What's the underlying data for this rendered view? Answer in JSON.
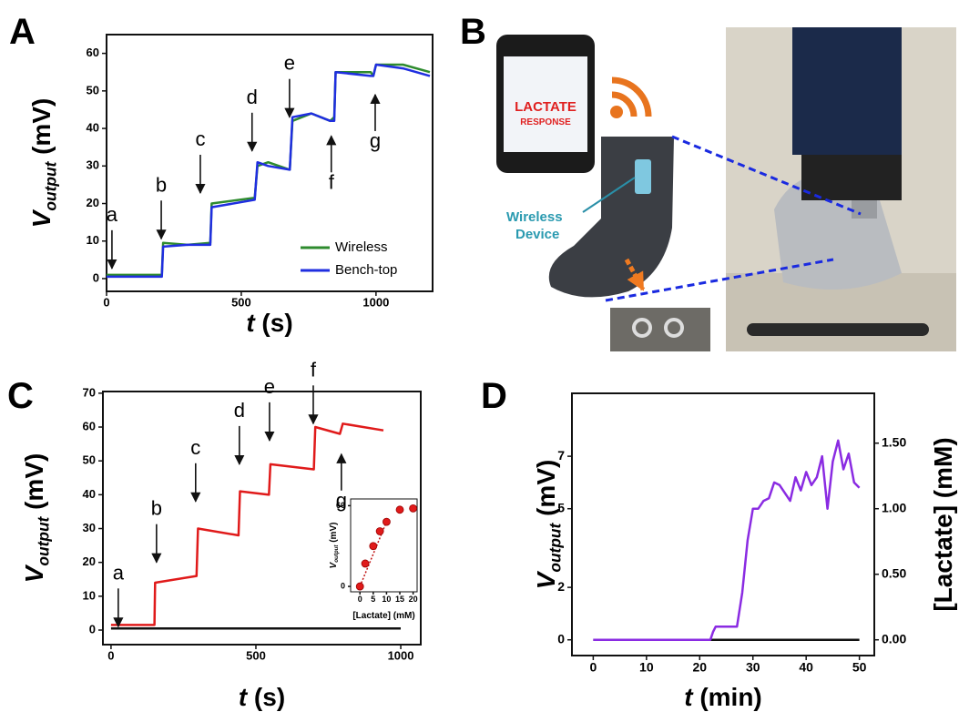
{
  "panel_b": {
    "label": "B",
    "phone_text": [
      "LACTATE",
      "RESPONSE"
    ],
    "device_label": [
      "Wireless",
      "Device"
    ]
  },
  "chart_data": [
    {
      "type": "line",
      "panel_label": "A",
      "x_label": {
        "main": "t",
        "unit": "(s)"
      },
      "y_label": {
        "main": "V",
        "sub": "output",
        "unit": "(mV)"
      },
      "xlim": [
        0,
        1210
      ],
      "xticks": [
        0,
        500,
        1000
      ],
      "ylim": [
        -3.4,
        65
      ],
      "yticks": [
        0,
        10,
        20,
        30,
        40,
        50,
        60
      ],
      "legend": "lower right",
      "series": [
        {
          "name": "Wireless",
          "color": "#2e8b2e",
          "x": [
            0,
            205,
            210,
            300,
            385,
            390,
            550,
            560,
            600,
            680,
            690,
            760,
            830,
            845,
            850,
            980,
            990,
            1000,
            1100,
            1200
          ],
          "values": [
            1,
            1,
            9.5,
            9,
            9.5,
            20,
            21.5,
            30,
            31,
            29,
            42,
            44,
            42,
            43,
            55,
            55,
            54,
            57,
            57,
            55
          ]
        },
        {
          "name": "Bench-top",
          "color": "#1f2ee0",
          "x": [
            0,
            205,
            210,
            300,
            385,
            390,
            550,
            560,
            600,
            680,
            690,
            760,
            830,
            845,
            850,
            980,
            990,
            1000,
            1100,
            1200
          ],
          "values": [
            0.5,
            0.5,
            8.5,
            9,
            9,
            19,
            21,
            31,
            30,
            29,
            43,
            44,
            42,
            42,
            55,
            54,
            54,
            57,
            56,
            54
          ]
        }
      ],
      "annotations": [
        {
          "text": "a",
          "x": 20,
          "y": 2.7,
          "direction": "down"
        },
        {
          "text": "b",
          "x": 203,
          "y": 10.6,
          "direction": "down"
        },
        {
          "text": "c",
          "x": 348,
          "y": 22.8,
          "direction": "down"
        },
        {
          "text": "d",
          "x": 540,
          "y": 34,
          "direction": "down"
        },
        {
          "text": "e",
          "x": 679,
          "y": 43,
          "direction": "down"
        },
        {
          "text": "f",
          "x": 834,
          "y": 38,
          "direction": "up"
        },
        {
          "text": "g",
          "x": 997,
          "y": 49,
          "direction": "up"
        }
      ]
    },
    {
      "type": "line",
      "panel_label": "C",
      "x_label": {
        "main": "t",
        "unit": "(s)"
      },
      "y_label": {
        "main": "V",
        "sub": "output",
        "unit": "(mV)"
      },
      "xlim": [
        -28,
        1069
      ],
      "xticks": [
        0,
        500,
        1000
      ],
      "ylim": [
        -4.3,
        70.5
      ],
      "yticks": [
        0,
        10,
        20,
        30,
        40,
        50,
        60,
        70
      ],
      "series": [
        {
          "color": "#e01a1a",
          "x": [
            0,
            150,
            152,
            295,
            300,
            440,
            445,
            545,
            550,
            700,
            705,
            790,
            800,
            940
          ],
          "values": [
            1.5,
            1.5,
            14,
            16,
            30,
            28,
            41,
            40,
            49,
            47.5,
            60,
            58,
            61,
            59
          ]
        },
        {
          "color": "#111111",
          "x": [
            0,
            1000
          ],
          "values": [
            0.5,
            0.5
          ]
        }
      ],
      "annotations": [
        {
          "text": "a",
          "x": 25,
          "y": 1,
          "direction": "down"
        },
        {
          "text": "b",
          "x": 157,
          "y": 20,
          "direction": "down"
        },
        {
          "text": "c",
          "x": 292,
          "y": 38,
          "direction": "down"
        },
        {
          "text": "d",
          "x": 443,
          "y": 49,
          "direction": "down"
        },
        {
          "text": "e",
          "x": 547,
          "y": 56,
          "direction": "down"
        },
        {
          "text": "f",
          "x": 698,
          "y": 61,
          "direction": "down"
        },
        {
          "text": "g",
          "x": 795,
          "y": 52,
          "direction": "up"
        }
      ]
    },
    {
      "type": "scatter",
      "x_label": {
        "main": "[Lactate] (mM)"
      },
      "y_label": {
        "main": "V",
        "sub": "output",
        "unit": "(mV)"
      },
      "xlim": [
        -3.5,
        21.5
      ],
      "xticks": [
        0,
        5,
        10,
        15,
        20
      ],
      "ylim": [
        -4,
        65
      ],
      "yticks": [
        0,
        60
      ],
      "series": [
        {
          "color": "#e01a1a",
          "x": [
            0,
            2,
            5,
            7.5,
            10,
            15,
            20
          ],
          "values": [
            0,
            17,
            30,
            41,
            48,
            57,
            58
          ]
        }
      ],
      "fit": {
        "color": "#c01010",
        "x": [
          0,
          10
        ],
        "values": [
          0,
          48
        ]
      }
    },
    {
      "type": "line",
      "panel_label": "D",
      "x_label": {
        "main": "t",
        "unit": "(min)"
      },
      "y_label": {
        "main": "V",
        "sub": "output",
        "unit": "(mV)"
      },
      "y2_label": {
        "main": "[Lactate] (mM)"
      },
      "xlim": [
        -4,
        52.8
      ],
      "xticks": [
        0,
        10,
        20,
        30,
        40,
        50
      ],
      "ylim": [
        -0.6,
        9.4
      ],
      "yticks": [
        0,
        2,
        5,
        7
      ],
      "y2lim": [
        -0.12,
        1.88
      ],
      "y2ticks": [
        {
          "value": 0,
          "label": "0.00"
        },
        {
          "value": 0.5,
          "label": "0.50"
        },
        {
          "value": 1,
          "label": "1.00"
        },
        {
          "value": 1.5,
          "label": "1.50"
        }
      ],
      "series": [
        {
          "color": "#111111",
          "x": [
            0,
            50
          ],
          "values": [
            0,
            0
          ]
        },
        {
          "color": "#8a2be2",
          "x": [
            0,
            22,
            22.5,
            23,
            27,
            28,
            29,
            30,
            31,
            32,
            33,
            34,
            35,
            36,
            37,
            38,
            39,
            40,
            41,
            42,
            43,
            44,
            45,
            46,
            47,
            48,
            49,
            50
          ],
          "values": [
            0,
            0,
            0.3,
            0.5,
            0.5,
            1.8,
            3.8,
            5,
            5,
            5.3,
            5.4,
            6,
            5.9,
            5.6,
            5.3,
            6.2,
            5.7,
            6.4,
            5.9,
            6.2,
            7,
            5,
            6.8,
            7.6,
            6.5,
            7.1,
            6,
            5.8
          ]
        }
      ]
    }
  ]
}
